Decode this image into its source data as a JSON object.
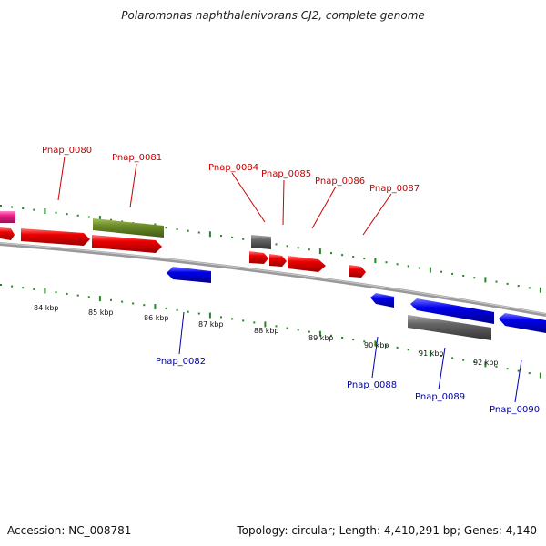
{
  "title": "Polaromonas naphthalenivorans CJ2, complete genome",
  "footer": {
    "accession": "Accession: NC_008781",
    "summary": "Topology: circular; Length: 4,410,291 bp; Genes: 4,140"
  },
  "colors": {
    "forward_gene": "#ee0000",
    "reverse_gene": "#0000ee",
    "forward_label": "#cc0000",
    "reverse_label": "#0000aa",
    "rna_gene": "#666666",
    "olive_gene": "#6f8f2a",
    "pink_gene": "#ee2288",
    "backbone": "#888888",
    "tick_marks": "#228822"
  },
  "scale_labels": [
    "84 kbp",
    "85 kbp",
    "86 kbp",
    "87 kbp",
    "88 kbp",
    "89 kbp",
    "90 kbp",
    "91 kbp",
    "92 kbp"
  ],
  "gene_labels": {
    "forward": [
      "Pnap_0080",
      "Pnap_0081",
      "Pnap_0084",
      "Pnap_0085",
      "Pnap_0086",
      "Pnap_0087"
    ],
    "reverse": [
      "Pnap_0082",
      "Pnap_0088",
      "Pnap_0089",
      "Pnap_0090"
    ]
  }
}
